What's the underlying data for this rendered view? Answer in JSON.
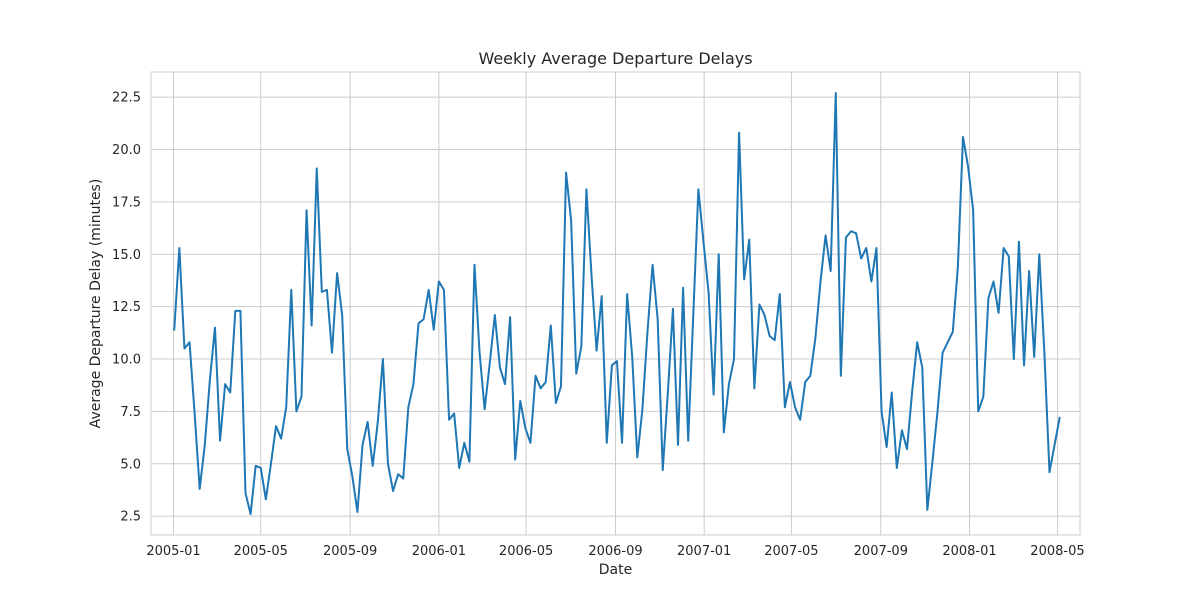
{
  "chart_data": {
    "type": "line",
    "title": "Weekly Average Departure Delays",
    "xlabel": "Date",
    "ylabel": "Average Departure Delay (minutes)",
    "x_ticks": [
      "2005-01",
      "2005-05",
      "2005-09",
      "2006-01",
      "2006-05",
      "2006-09",
      "2007-01",
      "2007-05",
      "2007-09",
      "2008-01",
      "2008-05"
    ],
    "y_ticks": [
      "2.5",
      "5.0",
      "7.5",
      "10.0",
      "12.5",
      "15.0",
      "17.5",
      "20.0",
      "22.5"
    ],
    "xlim": [
      "2004-12-01",
      "2008-06-01"
    ],
    "ylim": [
      1.6,
      23.7
    ],
    "grid": true,
    "color": "#1f77b4",
    "series": [
      {
        "values": [
          [
            "2005-01-02",
            11.4
          ],
          [
            "2005-01-09",
            15.3
          ],
          [
            "2005-01-16",
            10.5
          ],
          [
            "2005-01-23",
            10.8
          ],
          [
            "2005-01-30",
            7.4
          ],
          [
            "2005-02-06",
            3.8
          ],
          [
            "2005-02-13",
            5.9
          ],
          [
            "2005-02-20",
            9.0
          ],
          [
            "2005-02-27",
            11.5
          ],
          [
            "2005-03-06",
            6.1
          ],
          [
            "2005-03-13",
            8.8
          ],
          [
            "2005-03-20",
            8.4
          ],
          [
            "2005-03-27",
            12.3
          ],
          [
            "2005-04-03",
            12.3
          ],
          [
            "2005-04-10",
            3.6
          ],
          [
            "2005-04-17",
            2.6
          ],
          [
            "2005-04-24",
            4.9
          ],
          [
            "2005-05-01",
            4.8
          ],
          [
            "2005-05-08",
            3.3
          ],
          [
            "2005-05-15",
            5.0
          ],
          [
            "2005-05-22",
            6.8
          ],
          [
            "2005-05-29",
            6.2
          ],
          [
            "2005-06-05",
            7.7
          ],
          [
            "2005-06-12",
            13.3
          ],
          [
            "2005-06-19",
            7.5
          ],
          [
            "2005-06-26",
            8.2
          ],
          [
            "2005-07-03",
            17.1
          ],
          [
            "2005-07-10",
            11.6
          ],
          [
            "2005-07-17",
            19.1
          ],
          [
            "2005-07-24",
            13.2
          ],
          [
            "2005-07-31",
            13.3
          ],
          [
            "2005-08-07",
            10.3
          ],
          [
            "2005-08-14",
            14.1
          ],
          [
            "2005-08-21",
            12.1
          ],
          [
            "2005-08-28",
            5.7
          ],
          [
            "2005-09-04",
            4.4
          ],
          [
            "2005-09-11",
            2.7
          ],
          [
            "2005-09-18",
            5.9
          ],
          [
            "2005-09-25",
            7.0
          ],
          [
            "2005-10-02",
            4.9
          ],
          [
            "2005-10-09",
            7.0
          ],
          [
            "2005-10-16",
            10.0
          ],
          [
            "2005-10-23",
            5.0
          ],
          [
            "2005-10-30",
            3.7
          ],
          [
            "2005-11-06",
            4.5
          ],
          [
            "2005-11-13",
            4.3
          ],
          [
            "2005-11-20",
            7.7
          ],
          [
            "2005-11-27",
            8.8
          ],
          [
            "2005-12-04",
            11.7
          ],
          [
            "2005-12-11",
            11.9
          ],
          [
            "2005-12-18",
            13.3
          ],
          [
            "2005-12-25",
            11.4
          ],
          [
            "2006-01-01",
            13.7
          ],
          [
            "2006-01-08",
            13.3
          ],
          [
            "2006-01-15",
            7.1
          ],
          [
            "2006-01-22",
            7.4
          ],
          [
            "2006-01-29",
            4.8
          ],
          [
            "2006-02-05",
            6.0
          ],
          [
            "2006-02-12",
            5.1
          ],
          [
            "2006-02-19",
            14.5
          ],
          [
            "2006-02-26",
            10.3
          ],
          [
            "2006-03-05",
            7.6
          ],
          [
            "2006-03-12",
            9.8
          ],
          [
            "2006-03-19",
            12.1
          ],
          [
            "2006-03-26",
            9.6
          ],
          [
            "2006-04-02",
            8.8
          ],
          [
            "2006-04-09",
            12.0
          ],
          [
            "2006-04-16",
            5.2
          ],
          [
            "2006-04-23",
            8.0
          ],
          [
            "2006-04-30",
            6.7
          ],
          [
            "2006-05-07",
            6.0
          ],
          [
            "2006-05-14",
            9.2
          ],
          [
            "2006-05-21",
            8.6
          ],
          [
            "2006-05-28",
            8.9
          ],
          [
            "2006-06-04",
            11.6
          ],
          [
            "2006-06-11",
            7.9
          ],
          [
            "2006-06-18",
            8.7
          ],
          [
            "2006-06-25",
            18.9
          ],
          [
            "2006-07-02",
            16.6
          ],
          [
            "2006-07-09",
            9.3
          ],
          [
            "2006-07-16",
            10.6
          ],
          [
            "2006-07-23",
            18.1
          ],
          [
            "2006-07-30",
            14.0
          ],
          [
            "2006-08-06",
            10.4
          ],
          [
            "2006-08-13",
            13.0
          ],
          [
            "2006-08-20",
            6.0
          ],
          [
            "2006-08-27",
            9.7
          ],
          [
            "2006-09-03",
            9.9
          ],
          [
            "2006-09-10",
            6.0
          ],
          [
            "2006-09-17",
            13.1
          ],
          [
            "2006-09-24",
            10.1
          ],
          [
            "2006-10-01",
            5.3
          ],
          [
            "2006-10-08",
            7.6
          ],
          [
            "2006-10-15",
            11.3
          ],
          [
            "2006-10-22",
            14.5
          ],
          [
            "2006-10-29",
            11.9
          ],
          [
            "2006-11-05",
            4.7
          ],
          [
            "2006-11-12",
            8.4
          ],
          [
            "2006-11-19",
            12.4
          ],
          [
            "2006-11-26",
            5.9
          ],
          [
            "2006-12-03",
            13.4
          ],
          [
            "2006-12-10",
            6.1
          ],
          [
            "2006-12-17",
            12.1
          ],
          [
            "2006-12-24",
            18.1
          ],
          [
            "2006-12-31",
            15.6
          ],
          [
            "2007-01-07",
            13.2
          ],
          [
            "2007-01-14",
            8.3
          ],
          [
            "2007-01-21",
            15.0
          ],
          [
            "2007-01-28",
            6.5
          ],
          [
            "2007-02-04",
            8.8
          ],
          [
            "2007-02-11",
            10.0
          ],
          [
            "2007-02-18",
            20.8
          ],
          [
            "2007-02-25",
            13.8
          ],
          [
            "2007-03-04",
            15.7
          ],
          [
            "2007-03-11",
            8.6
          ],
          [
            "2007-03-18",
            12.6
          ],
          [
            "2007-03-25",
            12.1
          ],
          [
            "2007-04-01",
            11.1
          ],
          [
            "2007-04-08",
            10.9
          ],
          [
            "2007-04-15",
            13.1
          ],
          [
            "2007-04-22",
            7.7
          ],
          [
            "2007-04-29",
            8.9
          ],
          [
            "2007-05-06",
            7.7
          ],
          [
            "2007-05-13",
            7.1
          ],
          [
            "2007-05-20",
            8.9
          ],
          [
            "2007-05-27",
            9.2
          ],
          [
            "2007-06-03",
            11.0
          ],
          [
            "2007-06-10",
            13.7
          ],
          [
            "2007-06-17",
            15.9
          ],
          [
            "2007-06-24",
            14.2
          ],
          [
            "2007-07-01",
            22.7
          ],
          [
            "2007-07-08",
            9.2
          ],
          [
            "2007-07-15",
            15.8
          ],
          [
            "2007-07-22",
            16.1
          ],
          [
            "2007-07-29",
            16.0
          ],
          [
            "2007-08-05",
            14.8
          ],
          [
            "2007-08-12",
            15.3
          ],
          [
            "2007-08-19",
            13.7
          ],
          [
            "2007-08-26",
            15.3
          ],
          [
            "2007-09-02",
            7.5
          ],
          [
            "2007-09-09",
            5.8
          ],
          [
            "2007-09-16",
            8.4
          ],
          [
            "2007-09-23",
            4.8
          ],
          [
            "2007-09-30",
            6.6
          ],
          [
            "2007-10-07",
            5.7
          ],
          [
            "2007-10-14",
            8.4
          ],
          [
            "2007-10-21",
            10.8
          ],
          [
            "2007-10-28",
            9.6
          ],
          [
            "2007-11-04",
            2.8
          ],
          [
            "2007-11-11",
            5.1
          ],
          [
            "2007-11-18",
            7.5
          ],
          [
            "2007-11-25",
            10.3
          ],
          [
            "2007-12-02",
            10.8
          ],
          [
            "2007-12-09",
            11.3
          ],
          [
            "2007-12-16",
            14.4
          ],
          [
            "2007-12-23",
            20.6
          ],
          [
            "2007-12-30",
            19.2
          ],
          [
            "2008-01-06",
            17.1
          ],
          [
            "2008-01-13",
            7.5
          ],
          [
            "2008-01-20",
            8.2
          ],
          [
            "2008-01-27",
            12.9
          ],
          [
            "2008-02-03",
            13.7
          ],
          [
            "2008-02-10",
            12.2
          ],
          [
            "2008-02-17",
            15.3
          ],
          [
            "2008-02-24",
            14.9
          ],
          [
            "2008-03-02",
            10.0
          ],
          [
            "2008-03-09",
            15.6
          ],
          [
            "2008-03-16",
            9.7
          ],
          [
            "2008-03-23",
            14.2
          ],
          [
            "2008-03-30",
            10.1
          ],
          [
            "2008-04-06",
            15.0
          ],
          [
            "2008-04-13",
            10.3
          ],
          [
            "2008-04-20",
            4.6
          ],
          [
            "2008-04-27",
            5.9
          ],
          [
            "2008-05-04",
            7.2
          ]
        ]
      }
    ]
  }
}
